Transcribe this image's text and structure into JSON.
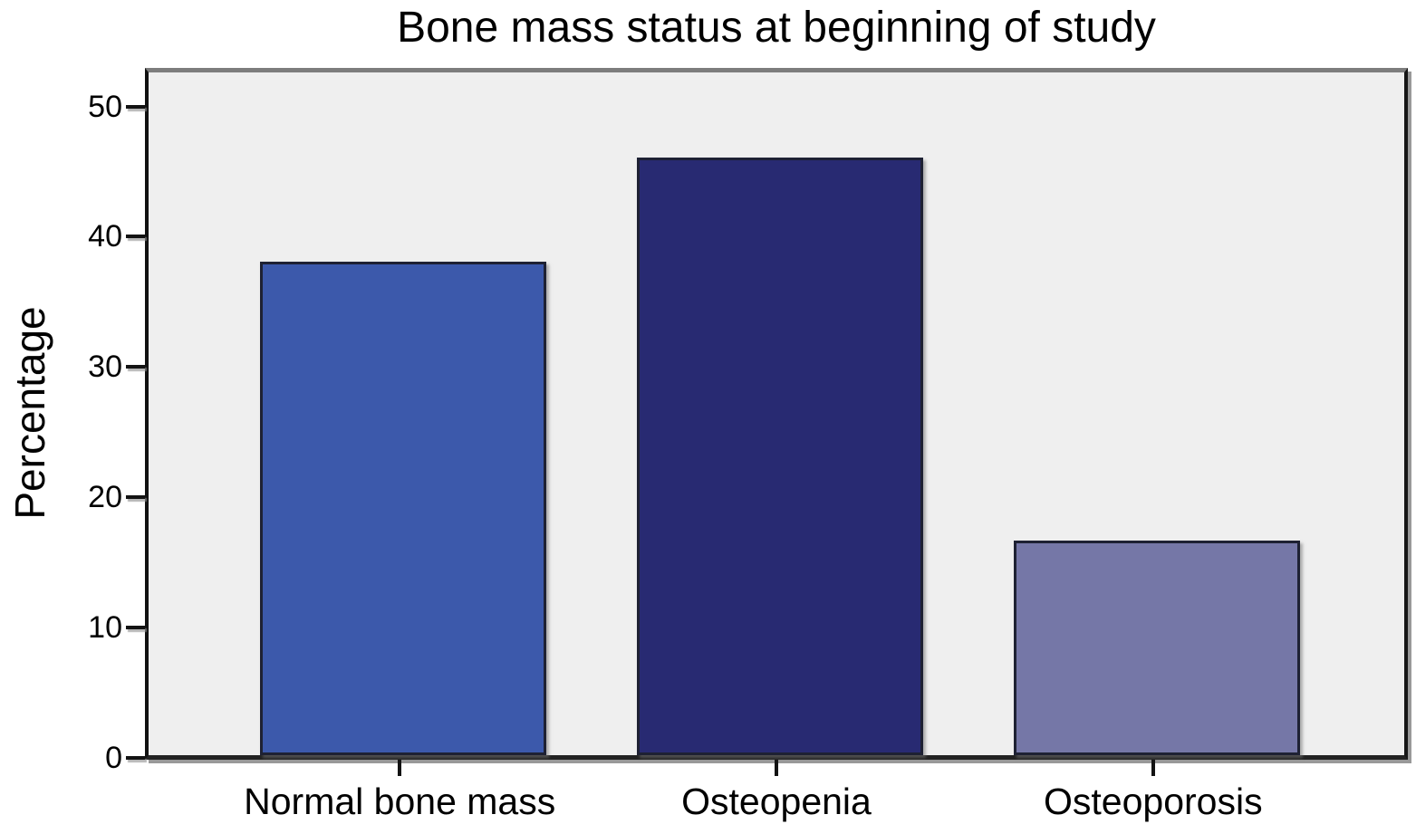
{
  "chart_data": {
    "type": "bar",
    "title": "Bone mass status at beginning of study",
    "ylabel": "Percentage",
    "xlabel": "",
    "categories": [
      "Normal bone mass",
      "Osteopenia",
      "Osteoporosis"
    ],
    "values": [
      37.9,
      45.9,
      16.5
    ],
    "bar_colors": [
      "#3c59ab",
      "#282a72",
      "#7577a7"
    ],
    "bar_border_color": "#1e2133",
    "yticks": [
      0,
      10,
      20,
      30,
      40,
      50
    ],
    "ylim": [
      0,
      52.4
    ],
    "grid": false,
    "legend": "none",
    "plot_background": "#efefef",
    "frame_top_color": "#7d7d7d",
    "axis_color": "#131313"
  }
}
